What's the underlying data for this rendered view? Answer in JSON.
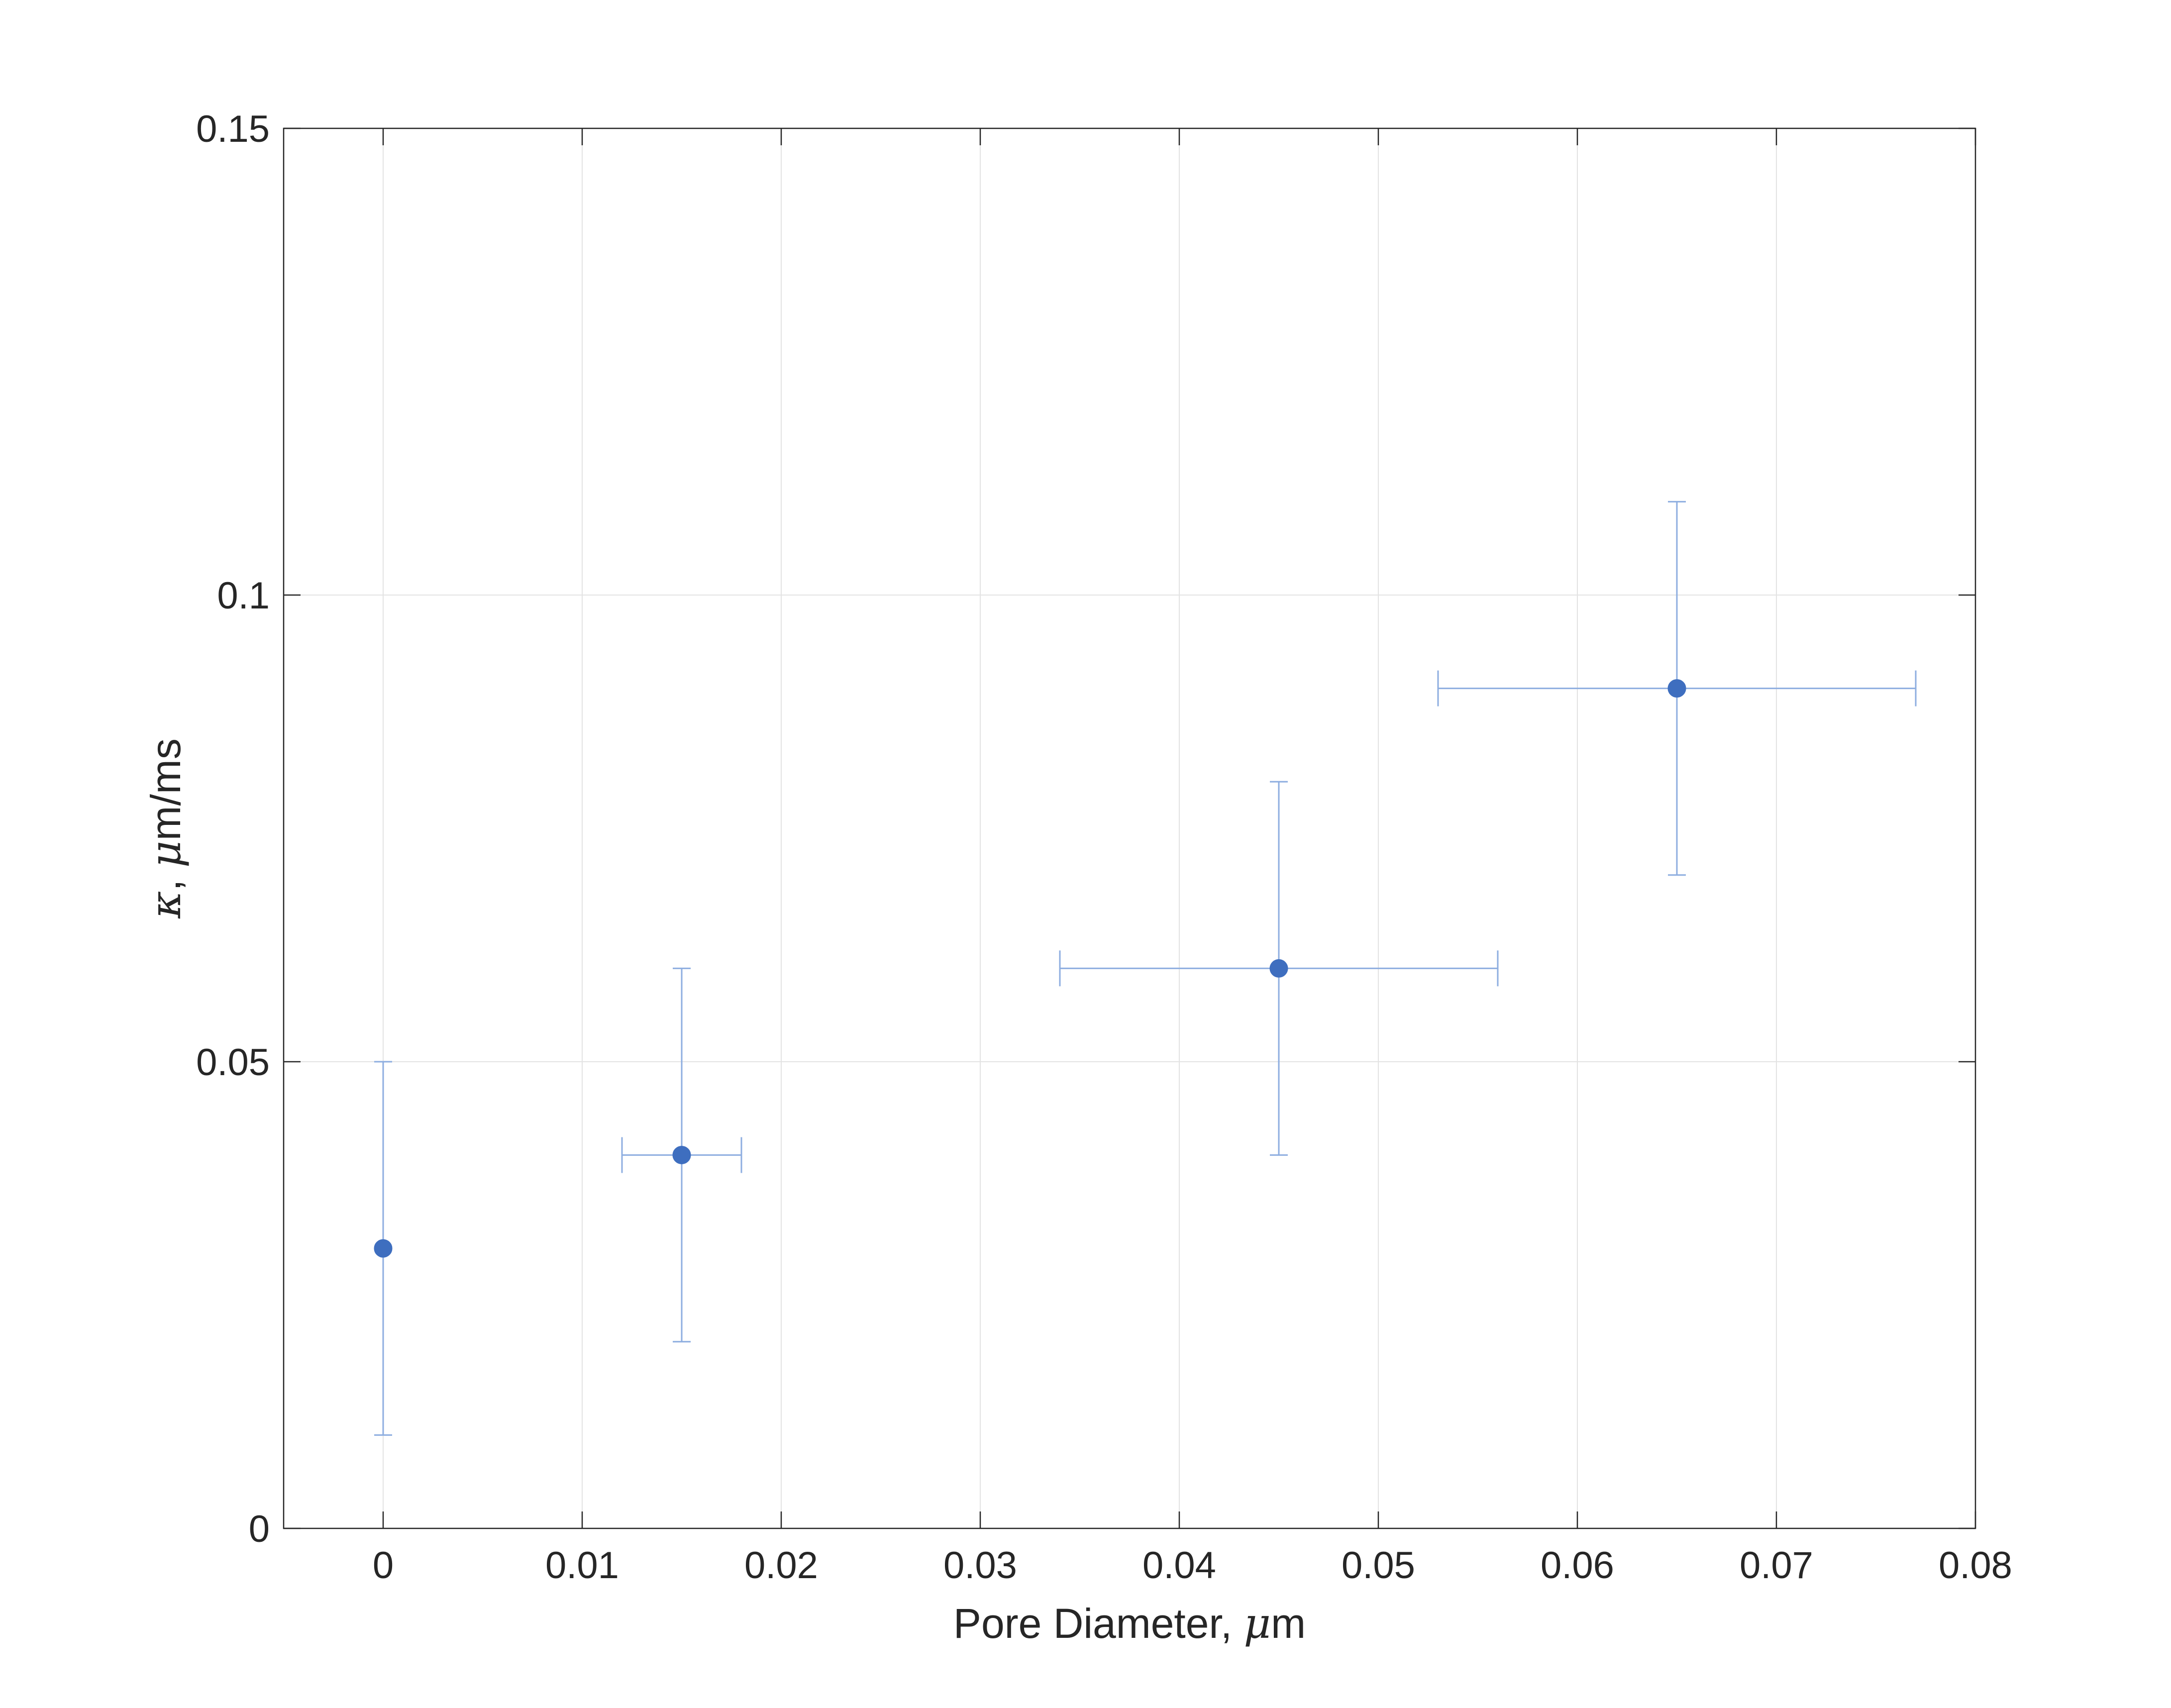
{
  "chart_data": {
    "type": "scatter",
    "xlabel": {
      "prefix": "Pore Diameter, ",
      "greek": "μ",
      "suffix": "m"
    },
    "ylabel": {
      "greek": "κ",
      "middle": ", ",
      "greek2": "μ",
      "suffix": "m/ms"
    },
    "xlim": [
      -0.005,
      0.08
    ],
    "ylim": [
      0,
      0.15
    ],
    "x_ticks": [
      0,
      0.01,
      0.02,
      0.03,
      0.04,
      0.05,
      0.06,
      0.07,
      0.08
    ],
    "x_tick_labels": [
      "0",
      "0.01",
      "0.02",
      "0.03",
      "0.04",
      "0.05",
      "0.06",
      "0.07",
      "0.08"
    ],
    "y_ticks": [
      0,
      0.05,
      0.1,
      0.15
    ],
    "y_tick_labels": [
      "0",
      "0.05",
      "0.1",
      "0.15"
    ],
    "grid": true,
    "marker_color": "#3e6ebf",
    "errorbar_color": "#8eaee0",
    "grid_color": "#e3e3e3",
    "axis_color": "#262626",
    "points": [
      {
        "x": 0,
        "y": 0.03,
        "y_err_low": 0.02,
        "y_err_high": 0.02,
        "x_err_low": 0,
        "x_err_high": 0
      },
      {
        "x": 0.015,
        "y": 0.04,
        "y_err_low": 0.02,
        "y_err_high": 0.02,
        "x_err_low": 0.003,
        "x_err_high": 0.003
      },
      {
        "x": 0.045,
        "y": 0.06,
        "y_err_low": 0.02,
        "y_err_high": 0.02,
        "x_err_low": 0.011,
        "x_err_high": 0.011
      },
      {
        "x": 0.065,
        "y": 0.09,
        "y_err_low": 0.02,
        "y_err_high": 0.02,
        "x_err_low": 0.012,
        "x_err_high": 0.012
      }
    ]
  }
}
